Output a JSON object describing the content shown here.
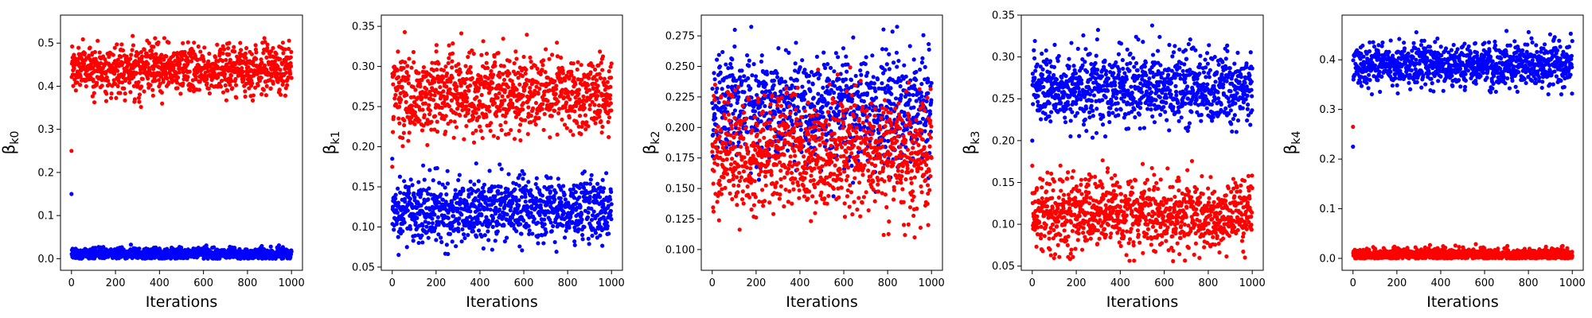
{
  "chart_data": [
    {
      "type": "scatter",
      "xlabel": "Iterations",
      "ylabel": {
        "symbol": "β",
        "subscript": "k0"
      },
      "xlim": [
        -50,
        1050
      ],
      "ylim": [
        -0.027,
        0.565
      ],
      "xticks": [
        0,
        200,
        400,
        600,
        800,
        1000
      ],
      "yticks": [
        0.0,
        0.1,
        0.2,
        0.3,
        0.4,
        0.5
      ],
      "ytick_labels": [
        "0.0",
        "0.1",
        "0.2",
        "0.3",
        "0.4",
        "0.5"
      ],
      "series": [
        {
          "color": "#ff0000",
          "initial": 0.25,
          "center": 0.44,
          "spread": 0.028,
          "min": 0.35,
          "max": 0.545
        },
        {
          "color": "#0000ff",
          "initial": 0.15,
          "center": 0.012,
          "spread": 0.007,
          "min": 0.0,
          "max": 0.052
        }
      ]
    },
    {
      "type": "scatter",
      "xlabel": "Iterations",
      "ylabel": {
        "symbol": "β",
        "subscript": "k1"
      },
      "xlim": [
        -50,
        1050
      ],
      "ylim": [
        0.046,
        0.364
      ],
      "xticks": [
        0,
        200,
        400,
        600,
        800,
        1000
      ],
      "yticks": [
        0.05,
        0.1,
        0.15,
        0.2,
        0.25,
        0.3,
        0.35
      ],
      "ytick_labels": [
        "0.05",
        "0.10",
        "0.15",
        "0.20",
        "0.25",
        "0.30",
        "0.35"
      ],
      "series": [
        {
          "color": "#ff0000",
          "initial": 0.175,
          "center": 0.265,
          "spread": 0.025,
          "min": 0.19,
          "max": 0.35
        },
        {
          "color": "#0000ff",
          "initial": 0.185,
          "center": 0.122,
          "spread": 0.02,
          "min": 0.063,
          "max": 0.18
        }
      ]
    },
    {
      "type": "scatter",
      "xlabel": "Iterations",
      "ylabel": {
        "symbol": "β",
        "subscript": "k2"
      },
      "xlim": [
        -50,
        1050
      ],
      "ylim": [
        0.083,
        0.292
      ],
      "xticks": [
        0,
        200,
        400,
        600,
        800,
        1000
      ],
      "yticks": [
        0.1,
        0.125,
        0.15,
        0.175,
        0.2,
        0.225,
        0.25,
        0.275
      ],
      "ytick_labels": [
        "0.100",
        "0.125",
        "0.150",
        "0.175",
        "0.200",
        "0.225",
        "0.250",
        "0.275"
      ],
      "series": [
        {
          "color": "#0000ff",
          "initial": 0.22,
          "center": 0.215,
          "spread": 0.022,
          "min": 0.125,
          "max": 0.284
        },
        {
          "color": "#ff0000",
          "initial": 0.18,
          "center": 0.178,
          "spread": 0.024,
          "min": 0.093,
          "max": 0.25
        }
      ]
    },
    {
      "type": "scatter",
      "xlabel": "Iterations",
      "ylabel": {
        "symbol": "β",
        "subscript": "k3"
      },
      "xlim": [
        -50,
        1050
      ],
      "ylim": [
        0.045,
        0.35
      ],
      "xticks": [
        0,
        200,
        400,
        600,
        800,
        1000
      ],
      "yticks": [
        0.05,
        0.1,
        0.15,
        0.2,
        0.25,
        0.3,
        0.35
      ],
      "ytick_labels": [
        "0.05",
        "0.10",
        "0.15",
        "0.20",
        "0.25",
        "0.30",
        "0.35"
      ],
      "series": [
        {
          "color": "#0000ff",
          "initial": 0.2,
          "center": 0.262,
          "spread": 0.022,
          "min": 0.2,
          "max": 0.338
        },
        {
          "color": "#ff0000",
          "initial": 0.17,
          "center": 0.112,
          "spread": 0.022,
          "min": 0.055,
          "max": 0.182
        }
      ]
    },
    {
      "type": "scatter",
      "xlabel": "Iterations",
      "ylabel": {
        "symbol": "β",
        "subscript": "k4"
      },
      "xlim": [
        -50,
        1050
      ],
      "ylim": [
        -0.024,
        0.49
      ],
      "xticks": [
        0,
        200,
        400,
        600,
        800,
        1000
      ],
      "yticks": [
        0.0,
        0.1,
        0.2,
        0.3,
        0.4
      ],
      "ytick_labels": [
        "0.0",
        "0.1",
        "0.2",
        "0.3",
        "0.4"
      ],
      "series": [
        {
          "color": "#0000ff",
          "initial": 0.225,
          "center": 0.39,
          "spread": 0.022,
          "min": 0.33,
          "max": 0.47
        },
        {
          "color": "#ff0000",
          "initial": 0.265,
          "center": 0.008,
          "spread": 0.006,
          "min": 0.0,
          "max": 0.042
        }
      ]
    }
  ]
}
